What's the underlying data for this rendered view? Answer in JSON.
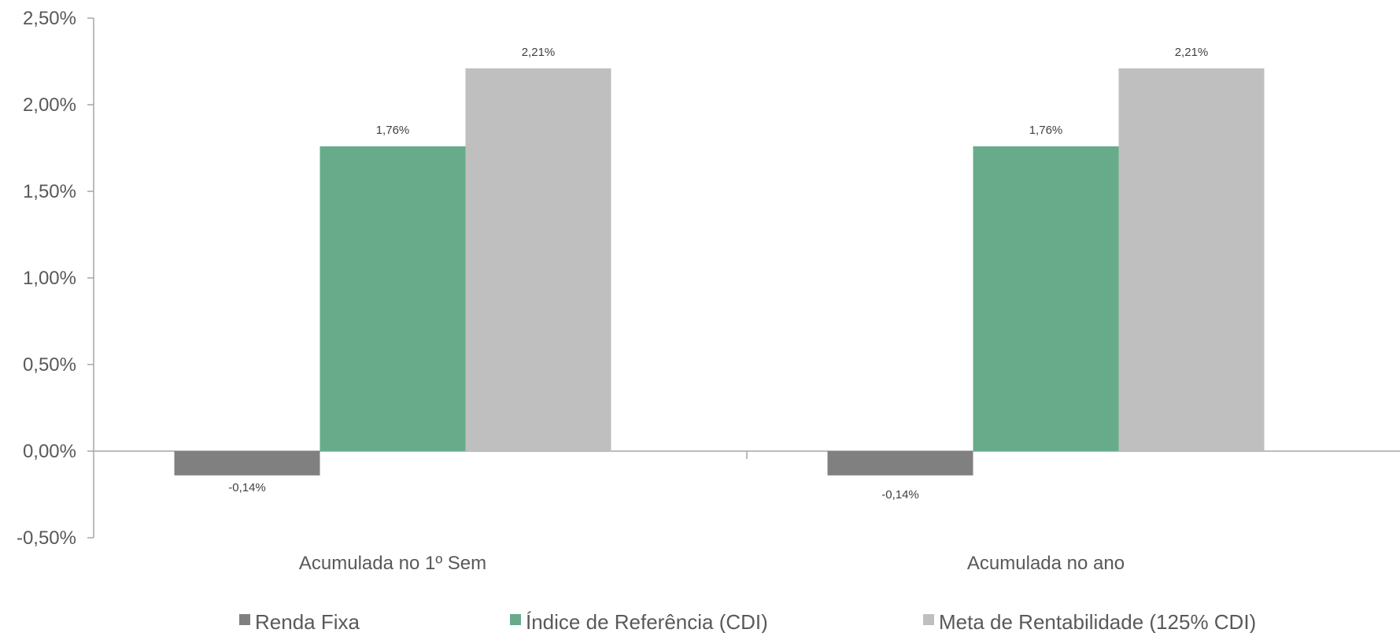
{
  "chart_data": {
    "type": "bar",
    "categories": [
      "Acumulada no 1º Sem",
      "Acumulada no ano"
    ],
    "series": [
      {
        "name": "Renda Fixa",
        "values": [
          -0.14,
          -0.14
        ],
        "labels": [
          "-0,14%",
          "-0,14%"
        ],
        "color": "#808080"
      },
      {
        "name": "Índice de Referência (CDI)",
        "values": [
          1.76,
          1.76
        ],
        "labels": [
          "1,76%",
          "1,76%"
        ],
        "color": "#67AB8B"
      },
      {
        "name": "Meta de Rentabilidade (125% CDI)",
        "values": [
          2.21,
          2.21
        ],
        "labels": [
          "2,21%",
          "2,21%"
        ],
        "color": "#BFBFBF"
      }
    ],
    "ylim": [
      -0.5,
      2.5
    ],
    "yticks": [
      2.5,
      2.0,
      1.5,
      1.0,
      0.5,
      0.0,
      -0.5
    ],
    "ytick_labels": [
      "2,50%",
      "2,00%",
      "1,50%",
      "1,00%",
      "0,50%",
      "0,00%",
      "-0,50%"
    ],
    "title": "",
    "xlabel": "",
    "ylabel": "",
    "grid": false,
    "legend": "bottom",
    "axis_color": "#A6A6A6"
  }
}
